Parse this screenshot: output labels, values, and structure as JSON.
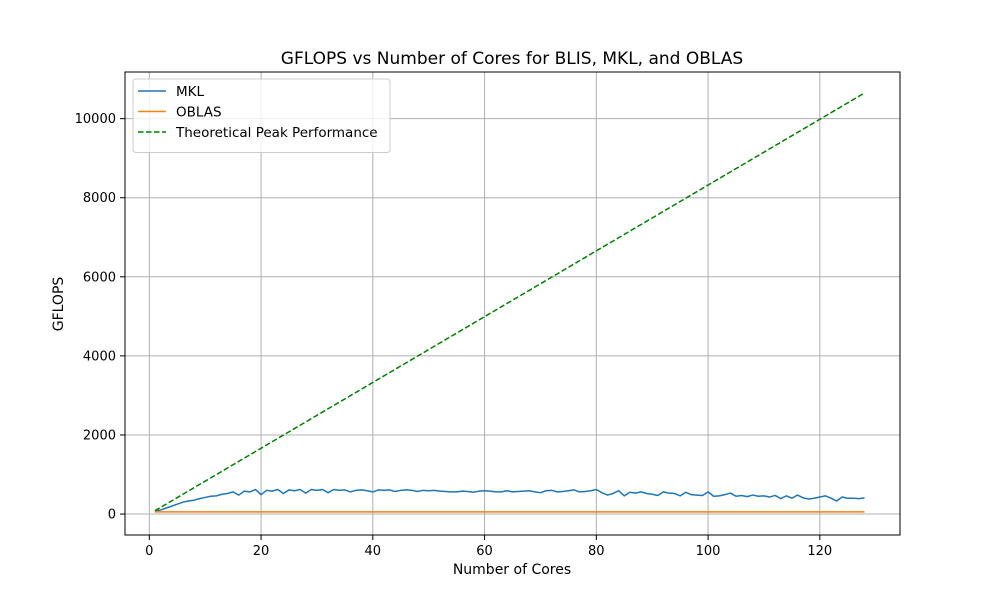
{
  "chart_data": {
    "type": "line",
    "title": "GFLOPS vs Number of Cores for BLIS, MKL, and OBLAS",
    "xlabel": "Number of Cores",
    "ylabel": "GFLOPS",
    "xlim": [
      -4.35,
      134.35
    ],
    "ylim": [
      -530,
      11180
    ],
    "xticks": [
      0,
      20,
      40,
      60,
      80,
      100,
      120
    ],
    "yticks": [
      0,
      2000,
      4000,
      6000,
      8000,
      10000
    ],
    "grid": true,
    "legend": "top-left",
    "series": [
      {
        "name": "MKL",
        "color": "#1f77b4",
        "style": "solid",
        "x": [
          1,
          2,
          3,
          4,
          5,
          6,
          7,
          8,
          9,
          10,
          11,
          12,
          13,
          14,
          15,
          16,
          17,
          18,
          19,
          20,
          21,
          22,
          23,
          24,
          25,
          26,
          27,
          28,
          29,
          30,
          31,
          32,
          33,
          34,
          35,
          36,
          37,
          38,
          39,
          40,
          41,
          42,
          43,
          44,
          45,
          46,
          47,
          48,
          49,
          50,
          51,
          52,
          53,
          54,
          55,
          56,
          57,
          58,
          59,
          60,
          61,
          62,
          63,
          64,
          65,
          66,
          67,
          68,
          69,
          70,
          71,
          72,
          73,
          74,
          75,
          76,
          77,
          78,
          79,
          80,
          81,
          82,
          83,
          84,
          85,
          86,
          87,
          88,
          89,
          90,
          91,
          92,
          93,
          94,
          95,
          96,
          97,
          98,
          99,
          100,
          101,
          102,
          103,
          104,
          105,
          106,
          107,
          108,
          109,
          110,
          111,
          112,
          113,
          114,
          115,
          116,
          117,
          118,
          119,
          120,
          121,
          122,
          123,
          124,
          125,
          126,
          127,
          128
        ],
        "values": [
          80,
          100,
          150,
          200,
          250,
          300,
          330,
          350,
          390,
          420,
          450,
          460,
          500,
          520,
          560,
          480,
          580,
          560,
          620,
          490,
          600,
          580,
          620,
          520,
          610,
          590,
          620,
          530,
          620,
          600,
          620,
          540,
          620,
          600,
          610,
          560,
          600,
          610,
          590,
          560,
          610,
          600,
          610,
          570,
          600,
          610,
          600,
          570,
          600,
          590,
          600,
          580,
          570,
          560,
          560,
          580,
          570,
          550,
          580,
          590,
          580,
          560,
          560,
          590,
          560,
          570,
          580,
          590,
          560,
          540,
          590,
          600,
          560,
          570,
          590,
          610,
          560,
          570,
          590,
          620,
          540,
          480,
          520,
          590,
          460,
          550,
          530,
          560,
          520,
          500,
          470,
          560,
          530,
          520,
          460,
          550,
          490,
          480,
          470,
          560,
          450,
          460,
          490,
          530,
          450,
          470,
          440,
          480,
          450,
          460,
          430,
          470,
          390,
          460,
          400,
          480,
          410,
          380,
          400,
          430,
          460,
          400,
          330,
          430,
          400,
          400,
          390,
          410
        ]
      },
      {
        "name": "OBLAS",
        "color": "#ff7f0e",
        "style": "solid",
        "x": [
          1,
          128
        ],
        "values": [
          55,
          55
        ]
      },
      {
        "name": "Theoretical Peak Performance",
        "color": "#008000",
        "style": "dashed",
        "x": [
          1,
          128
        ],
        "values": [
          83,
          10650
        ]
      }
    ]
  }
}
